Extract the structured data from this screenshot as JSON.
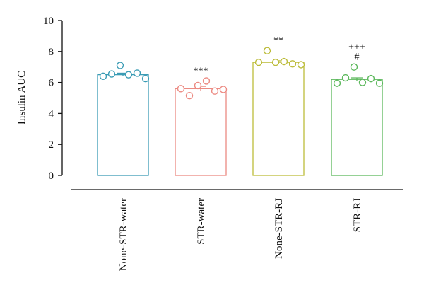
{
  "chart_data": {
    "type": "bar",
    "title": "",
    "xlabel": "",
    "ylabel": "Insulin AUC",
    "ylim": [
      0,
      10
    ],
    "yticks": [
      0,
      2,
      4,
      6,
      8,
      10
    ],
    "grid": false,
    "legend": "none",
    "categories": [
      "None-STR-water",
      "STR-water",
      "None-STR-RJ",
      "STR-RJ"
    ],
    "values": [
      6.5,
      5.6,
      7.3,
      6.2
    ],
    "errors": [
      0.1,
      0.15,
      0.1,
      0.1
    ],
    "colors": [
      "#3b9cb5",
      "#ec8a82",
      "#bcbc3a",
      "#5cb85c"
    ],
    "points": [
      [
        6.4,
        6.55,
        7.1,
        6.5,
        6.6,
        6.25
      ],
      [
        5.6,
        5.15,
        5.8,
        6.1,
        5.45,
        5.55
      ],
      [
        7.3,
        8.05,
        7.3,
        7.35,
        7.2,
        7.15
      ],
      [
        5.95,
        6.3,
        7.0,
        6.0,
        6.25,
        5.95
      ]
    ],
    "annotations": [
      {
        "category": "STR-water",
        "lines": [
          "***"
        ]
      },
      {
        "category": "None-STR-RJ",
        "lines": [
          "**"
        ]
      },
      {
        "category": "STR-RJ",
        "lines": [
          "+++",
          "#"
        ]
      }
    ]
  }
}
